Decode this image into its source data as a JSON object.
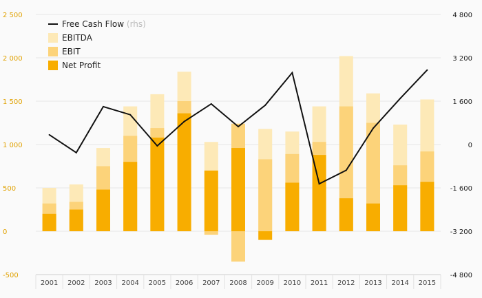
{
  "chart_data": {
    "type": "bar",
    "categories": [
      "2001",
      "2002",
      "2003",
      "2004",
      "2005",
      "2006",
      "2007",
      "2008",
      "2009",
      "2010",
      "2011",
      "2012",
      "2013",
      "2014",
      "2015"
    ],
    "series": [
      {
        "name": "EBITDA",
        "kind": "bar",
        "axis": "left",
        "color": "#fde9b7",
        "values": [
          500,
          540,
          960,
          1440,
          1580,
          1840,
          1030,
          1240,
          1180,
          1150,
          1440,
          2020,
          1590,
          1230,
          1520
        ]
      },
      {
        "name": "EBIT",
        "kind": "bar",
        "axis": "left",
        "color": "#fcd37a",
        "values": [
          320,
          340,
          750,
          1100,
          1190,
          1500,
          -40,
          1240,
          830,
          890,
          1030,
          1440,
          1250,
          760,
          920
        ]
      },
      {
        "name": "Net Profit",
        "kind": "bar",
        "axis": "left",
        "color": "#f8ad00",
        "values": [
          200,
          250,
          480,
          800,
          1080,
          1360,
          700,
          960,
          -100,
          560,
          880,
          380,
          320,
          530,
          570
        ]
      },
      {
        "name": "Free Cash Flow",
        "name_suffix": "(rhs)",
        "kind": "line",
        "axis": "right",
        "color": "#111111",
        "values": [
          360,
          -300,
          1400,
          1100,
          -50,
          850,
          1500,
          660,
          1450,
          2650,
          -1450,
          -950,
          600,
          1700,
          2750
        ]
      }
    ],
    "negative_segments": {
      "2008": {
        "value": -350,
        "color": "#fcd37a"
      }
    },
    "y_left": {
      "min": -500,
      "max": 2500,
      "ticks": [
        "2 500",
        "2 000",
        "1 500",
        "1 000",
        "500",
        "0",
        "-500"
      ]
    },
    "y_right": {
      "min": -4800,
      "max": 4800,
      "ticks": [
        "4 800",
        "3 200",
        "1 600",
        "0",
        "-1 600",
        "-3 200",
        "-4 800"
      ]
    },
    "legend": [
      {
        "label": "Free Cash Flow",
        "sub": "(rhs)",
        "type": "line",
        "color": "#111111"
      },
      {
        "label": "EBITDA",
        "type": "box",
        "color": "#fde9b7"
      },
      {
        "label": "EBIT",
        "type": "box",
        "color": "#fcd37a"
      },
      {
        "label": "Net Profit",
        "type": "box",
        "color": "#f8ad00"
      }
    ],
    "legend_position": "top-left",
    "grid": "horizontal"
  }
}
